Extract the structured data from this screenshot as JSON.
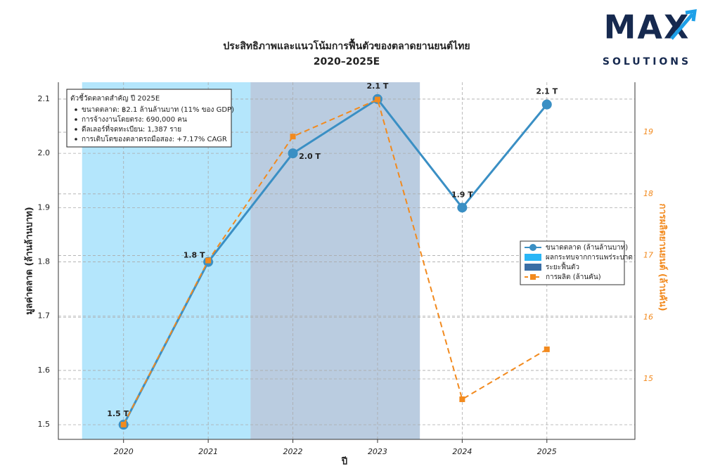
{
  "logo": {
    "name": "MAX",
    "tagline": "SOLUTIONS"
  },
  "chart_data": {
    "type": "line",
    "title": "ประสิทธิภาพและแนวโน้มการฟื้นตัวของตลาดยานยนต์ไทย",
    "subtitle": "2020–2025E",
    "x_label": "ปี",
    "y_label": "มูลค่าตลาด (ล้านล้านบาท)",
    "y2_label": "การผลิตยานยนต์ (ล้านคัน)",
    "x": [
      2020,
      2021,
      2022,
      2023,
      2024,
      2025
    ],
    "xlim": [
      2019.23,
      2026.04
    ],
    "xticks": [
      2020,
      2021,
      2022,
      2023,
      2024,
      2025
    ],
    "ylim": [
      1.473,
      2.131
    ],
    "yticks": [
      1.5,
      1.6,
      1.7,
      1.8,
      1.9,
      {
        "value": 2,
        "label": "2.0"
      },
      2.1
    ],
    "y2lim": [
      14.02,
      19.81
    ],
    "y2ticks": [
      15,
      16,
      17,
      18,
      19
    ],
    "grid": true,
    "series": [
      {
        "name": "ขนาดตลาด (ล้านล้านบาท)",
        "color": "#3a8fc4",
        "values": [
          1.5,
          1.8,
          2.0,
          2.1,
          1.9,
          2.09
        ],
        "value_labels": [
          "1.5 T",
          "1.8 T",
          "2.0 T",
          "2.1 T",
          "1.9 T",
          "2.1 T"
        ]
      },
      {
        "name": "การผลิต (ล้านคัน)",
        "color": "#f28a1e",
        "axis": "y2",
        "values": [
          14.26,
          16.92,
          18.93,
          19.53,
          14.67,
          15.48
        ]
      }
    ],
    "spans": [
      {
        "name": "ผลกระทบจากการแพร่ระบาด",
        "color": "#29b6f6",
        "range": [
          2019.51,
          2021.5
        ]
      },
      {
        "name": "ระยะฟื้นตัว",
        "color": "#3a6ea5",
        "range": [
          2021.5,
          2023.5
        ]
      }
    ],
    "info_box": {
      "title": "ตัวชี้วัดตลาดสำคัญ ปี 2025E",
      "items": [
        "ขนาดตลาด: ฿2.1 ล้านล้านบาท (11% ของ GDP)",
        "การจ้างงานโดยตรง: 690,000 คน",
        "ดีลเลอร์ที่จดทะเบียน: 1,387 ราย",
        "การเติบโตของตลาดรถมือสอง: +7.17% CAGR"
      ]
    }
  }
}
